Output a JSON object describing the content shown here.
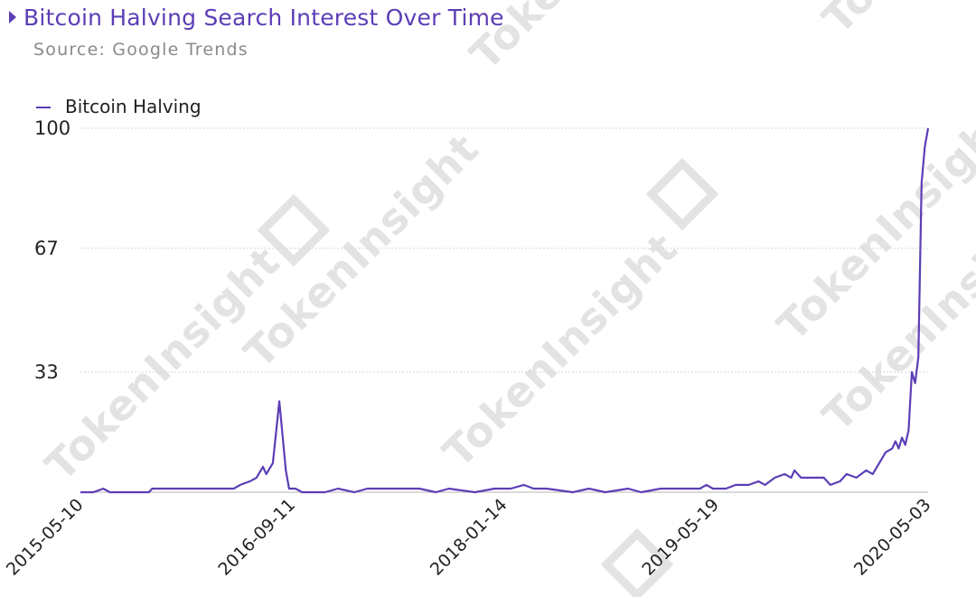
{
  "header": {
    "title": "Bitcoin Halving Search Interest Over Time",
    "source": "Source: Google Trends"
  },
  "watermark": {
    "text": "TokenInsight"
  },
  "colors": {
    "accent": "#5b3eb6",
    "line": "#5b3eb6",
    "grid": "#d4d4d4",
    "axis": "#b5b5b5",
    "watermark": "#e3e3e3"
  },
  "chart_data": {
    "type": "line",
    "title": "Bitcoin Halving Search Interest Over Time",
    "subtitle": "Source: Google Trends",
    "xlabel": "",
    "ylabel": "",
    "x_start": "2015-05-10",
    "x_end": "2020-05-03",
    "x_tick_labels": [
      "2015-05-10",
      "2016-09-11",
      "2018-01-14",
      "2019-05-19",
      "2020-05-03"
    ],
    "y_ticks": [
      100,
      67,
      33
    ],
    "ylim": [
      0,
      100
    ],
    "grid": true,
    "legend": "top-left",
    "series": [
      {
        "name": "Bitcoin Halving",
        "points": [
          [
            "2015-05-10",
            0
          ],
          [
            "2015-06-07",
            0
          ],
          [
            "2015-06-28",
            1
          ],
          [
            "2015-07-12",
            0
          ],
          [
            "2015-08-23",
            0
          ],
          [
            "2015-09-06",
            0
          ],
          [
            "2015-10-04",
            0
          ],
          [
            "2015-10-11",
            1
          ],
          [
            "2015-11-08",
            1
          ],
          [
            "2015-12-06",
            1
          ],
          [
            "2016-01-03",
            1
          ],
          [
            "2016-02-07",
            1
          ],
          [
            "2016-03-06",
            1
          ],
          [
            "2016-04-03",
            1
          ],
          [
            "2016-04-17",
            2
          ],
          [
            "2016-05-08",
            3
          ],
          [
            "2016-05-22",
            4
          ],
          [
            "2016-06-05",
            7
          ],
          [
            "2016-06-12",
            5
          ],
          [
            "2016-06-26",
            8
          ],
          [
            "2016-07-10",
            25
          ],
          [
            "2016-07-24",
            6
          ],
          [
            "2016-07-31",
            1
          ],
          [
            "2016-08-14",
            1
          ],
          [
            "2016-08-28",
            0
          ],
          [
            "2016-09-18",
            0
          ],
          [
            "2016-10-16",
            0
          ],
          [
            "2016-11-13",
            1
          ],
          [
            "2016-12-18",
            0
          ],
          [
            "2017-01-15",
            1
          ],
          [
            "2017-03-12",
            1
          ],
          [
            "2017-05-07",
            1
          ],
          [
            "2017-06-11",
            0
          ],
          [
            "2017-07-09",
            1
          ],
          [
            "2017-09-03",
            0
          ],
          [
            "2017-10-15",
            1
          ],
          [
            "2017-11-19",
            1
          ],
          [
            "2017-12-17",
            2
          ],
          [
            "2018-01-07",
            1
          ],
          [
            "2018-02-04",
            1
          ],
          [
            "2018-04-01",
            0
          ],
          [
            "2018-05-06",
            1
          ],
          [
            "2018-06-10",
            0
          ],
          [
            "2018-07-29",
            1
          ],
          [
            "2018-08-26",
            0
          ],
          [
            "2018-10-07",
            1
          ],
          [
            "2018-11-25",
            1
          ],
          [
            "2018-12-30",
            1
          ],
          [
            "2019-01-13",
            2
          ],
          [
            "2019-01-27",
            1
          ],
          [
            "2019-02-24",
            1
          ],
          [
            "2019-03-17",
            2
          ],
          [
            "2019-04-14",
            2
          ],
          [
            "2019-05-05",
            3
          ],
          [
            "2019-05-19",
            2
          ],
          [
            "2019-06-09",
            4
          ],
          [
            "2019-06-30",
            5
          ],
          [
            "2019-07-14",
            4
          ],
          [
            "2019-07-21",
            6
          ],
          [
            "2019-08-04",
            4
          ],
          [
            "2019-09-01",
            4
          ],
          [
            "2019-09-22",
            4
          ],
          [
            "2019-10-06",
            2
          ],
          [
            "2019-10-27",
            3
          ],
          [
            "2019-11-10",
            5
          ],
          [
            "2019-12-01",
            4
          ],
          [
            "2019-12-22",
            6
          ],
          [
            "2020-01-05",
            5
          ],
          [
            "2020-01-19",
            8
          ],
          [
            "2020-02-02",
            11
          ],
          [
            "2020-02-16",
            12
          ],
          [
            "2020-02-23",
            14
          ],
          [
            "2020-03-01",
            12
          ],
          [
            "2020-03-08",
            15
          ],
          [
            "2020-03-15",
            13
          ],
          [
            "2020-03-22",
            17
          ],
          [
            "2020-03-29",
            33
          ],
          [
            "2020-04-05",
            30
          ],
          [
            "2020-04-12",
            37
          ],
          [
            "2020-04-19",
            85
          ],
          [
            "2020-04-26",
            95
          ],
          [
            "2020-05-03",
            100
          ]
        ]
      }
    ]
  }
}
